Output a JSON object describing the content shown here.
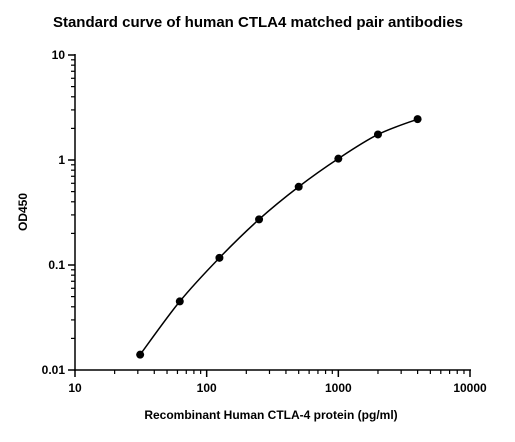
{
  "chart_data": {
    "type": "scatter",
    "title": "Standard curve of human CTLA4 matched pair antibodies",
    "xlabel": "Recombinant Human CTLA-4 protein (pg/ml)",
    "ylabel": "OD450",
    "x_scale": "log",
    "y_scale": "log",
    "xlim": [
      10,
      10000
    ],
    "ylim": [
      0.01,
      10
    ],
    "x_ticks": [
      {
        "value": 10,
        "label": "10"
      },
      {
        "value": 100,
        "label": "100"
      },
      {
        "value": 1000,
        "label": "1000"
      },
      {
        "value": 10000,
        "label": "10000"
      }
    ],
    "y_ticks": [
      {
        "value": 0.01,
        "label": "0.01"
      },
      {
        "value": 0.1,
        "label": "0.1"
      },
      {
        "value": 1,
        "label": "1"
      },
      {
        "value": 10,
        "label": "10"
      }
    ],
    "grid": false,
    "fitted_curve": true,
    "series": [
      {
        "x": [
          31.25,
          62.5,
          125,
          250,
          500,
          1000,
          2000,
          4000
        ],
        "y": [
          0.014,
          0.045,
          0.117,
          0.272,
          0.556,
          1.03,
          1.75,
          2.45
        ]
      }
    ],
    "colors": {
      "marker": "#000000",
      "line": "#000000",
      "axis": "#000000"
    }
  }
}
